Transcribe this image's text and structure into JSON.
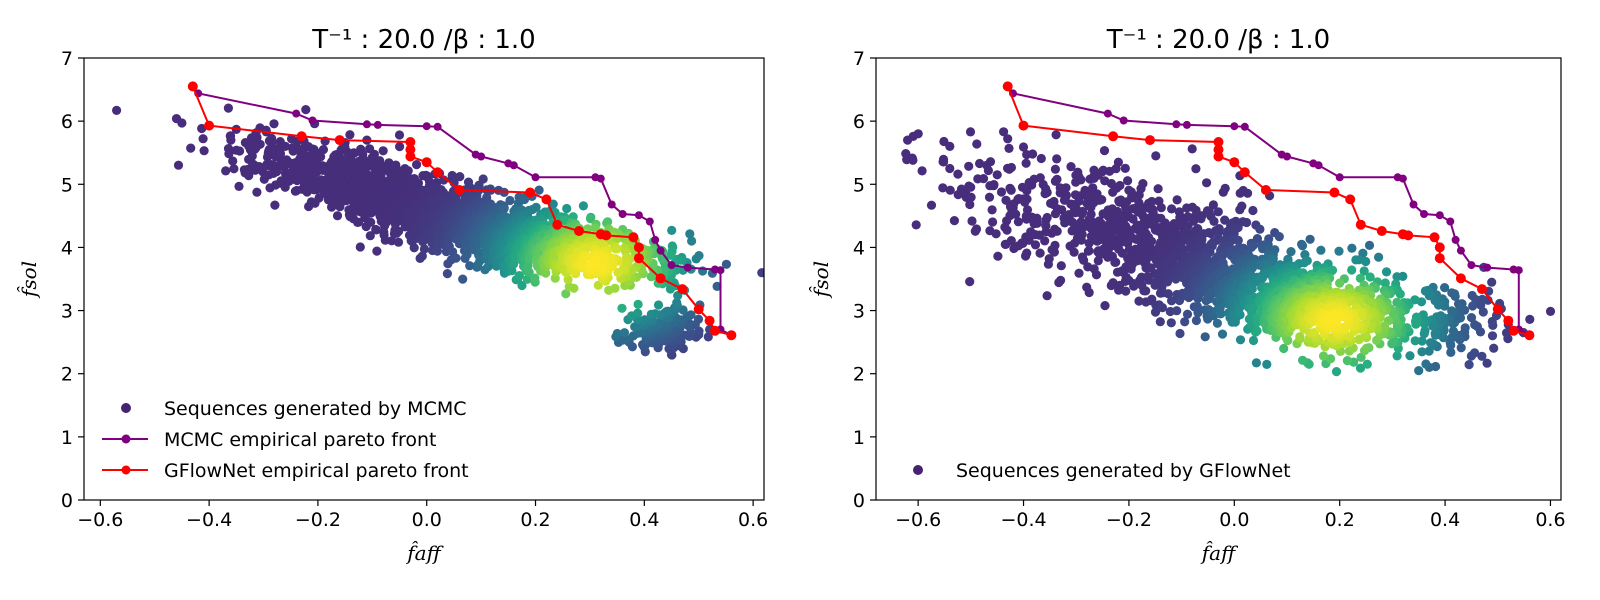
{
  "chart_data": [
    {
      "type": "scatter",
      "title": "T⁻¹ : 20.0 /β : 1.0",
      "xlabel": "f̂aff",
      "ylabel": "f̂sol",
      "xlim": [
        -0.63,
        0.62
      ],
      "ylim": [
        0,
        7
      ],
      "xticks": [
        -0.6,
        -0.4,
        -0.2,
        0.0,
        0.2,
        0.4,
        0.6
      ],
      "xtick_labels": [
        "−0.6",
        "−0.4",
        "−0.2",
        "0.0",
        "0.2",
        "0.4",
        "0.6"
      ],
      "yticks": [
        0,
        1,
        2,
        3,
        4,
        5,
        6,
        7
      ],
      "ytick_labels": [
        "0",
        "1",
        "2",
        "3",
        "4",
        "5",
        "6",
        "7"
      ],
      "grid": false,
      "legend_position": "lower-left",
      "series": [
        {
          "name": "Sequences generated by MCMC",
          "kind": "scatter-density",
          "colormap": "viridis",
          "density_peak": [
            0.31,
            3.75
          ],
          "outlier_points": [
            [
              -0.57,
              6.17
            ],
            [
              -0.46,
              6.04
            ],
            [
              -0.45,
              5.97
            ],
            [
              -0.36,
              5.7
            ],
            [
              -0.33,
              5.65
            ],
            [
              -0.35,
              5.87
            ],
            [
              -0.26,
              5.6
            ],
            [
              -0.19,
              5.55
            ],
            [
              -0.15,
              5.66
            ],
            [
              -0.08,
              5.53
            ],
            [
              -0.11,
              5.7
            ],
            [
              -0.05,
              5.78
            ],
            [
              0.42,
              2.7
            ],
            [
              0.4,
              2.42
            ],
            [
              0.45,
              2.3
            ],
            [
              0.47,
              2.82
            ],
            [
              0.42,
              2.95
            ],
            [
              0.5,
              2.62
            ],
            [
              0.46,
              2.55
            ],
            [
              0.38,
              2.6
            ],
            [
              0.52,
              2.7
            ]
          ],
          "color_low": "#46327e",
          "color_high": "#fde725"
        },
        {
          "name": "MCMC empirical pareto front",
          "kind": "line",
          "color": "#800080",
          "points": [
            [
              -0.43,
              6.55
            ],
            [
              -0.42,
              6.44
            ],
            [
              -0.24,
              6.12
            ],
            [
              -0.21,
              6.01
            ],
            [
              -0.11,
              5.95
            ],
            [
              -0.09,
              5.94
            ],
            [
              0.0,
              5.92
            ],
            [
              0.02,
              5.91
            ],
            [
              0.09,
              5.47
            ],
            [
              0.1,
              5.44
            ],
            [
              0.15,
              5.33
            ],
            [
              0.16,
              5.3
            ],
            [
              0.2,
              5.11
            ],
            [
              0.31,
              5.11
            ],
            [
              0.32,
              5.09
            ],
            [
              0.34,
              4.68
            ],
            [
              0.36,
              4.53
            ],
            [
              0.39,
              4.51
            ],
            [
              0.41,
              4.41
            ],
            [
              0.42,
              4.12
            ],
            [
              0.43,
              3.95
            ],
            [
              0.45,
              3.72
            ],
            [
              0.48,
              3.68
            ],
            [
              0.53,
              3.65
            ],
            [
              0.54,
              3.64
            ],
            [
              0.54,
              2.7
            ],
            [
              0.56,
              2.61
            ]
          ]
        },
        {
          "name": "GFlowNet empirical pareto front",
          "kind": "line",
          "color": "#ff0000",
          "points": [
            [
              -0.43,
              6.55
            ],
            [
              -0.4,
              5.93
            ],
            [
              -0.23,
              5.76
            ],
            [
              -0.16,
              5.7
            ],
            [
              -0.03,
              5.67
            ],
            [
              -0.03,
              5.55
            ],
            [
              -0.03,
              5.44
            ],
            [
              0.0,
              5.35
            ],
            [
              0.02,
              5.19
            ],
            [
              0.06,
              4.91
            ],
            [
              0.19,
              4.87
            ],
            [
              0.22,
              4.76
            ],
            [
              0.24,
              4.36
            ],
            [
              0.28,
              4.26
            ],
            [
              0.32,
              4.21
            ],
            [
              0.33,
              4.19
            ],
            [
              0.38,
              4.16
            ],
            [
              0.39,
              4.0
            ],
            [
              0.39,
              3.83
            ],
            [
              0.43,
              3.51
            ],
            [
              0.47,
              3.34
            ],
            [
              0.5,
              3.02
            ],
            [
              0.52,
              2.84
            ],
            [
              0.53,
              2.68
            ],
            [
              0.56,
              2.61
            ]
          ]
        }
      ]
    },
    {
      "type": "scatter",
      "title": "T⁻¹ : 20.0 /β : 1.0",
      "xlabel": "f̂aff",
      "ylabel": "f̂sol",
      "xlim": [
        -0.68,
        0.62
      ],
      "ylim": [
        0,
        7
      ],
      "xticks": [
        -0.6,
        -0.4,
        -0.2,
        0.0,
        0.2,
        0.4,
        0.6
      ],
      "xtick_labels": [
        "−0.6",
        "−0.4",
        "−0.2",
        "0.0",
        "0.2",
        "0.4",
        "0.6"
      ],
      "yticks": [
        0,
        1,
        2,
        3,
        4,
        5,
        6,
        7
      ],
      "ytick_labels": [
        "0",
        "1",
        "2",
        "3",
        "4",
        "5",
        "6",
        "7"
      ],
      "grid": false,
      "legend_position": "lower-left",
      "series": [
        {
          "name": "Sequences generated by GFlowNet",
          "kind": "scatter-density",
          "colormap": "viridis",
          "density_peak": [
            0.19,
            2.85
          ],
          "outlier_points": [
            [
              -0.62,
              5.7
            ],
            [
              -0.6,
              5.8
            ],
            [
              -0.61,
              5.38
            ],
            [
              -0.54,
              5.6
            ],
            [
              -0.54,
              5.25
            ],
            [
              -0.47,
              5.3
            ],
            [
              -0.45,
              5.15
            ],
            [
              -0.43,
              5.72
            ],
            [
              -0.4,
              5.59
            ],
            [
              -0.38,
              5.08
            ],
            [
              -0.31,
              5.28
            ],
            [
              -0.28,
              4.7
            ],
            [
              -0.22,
              5.35
            ],
            [
              -0.08,
              5.56
            ],
            [
              0.35,
              2.05
            ],
            [
              0.37,
              2.1
            ],
            [
              0.45,
              2.28
            ],
            [
              0.49,
              2.6
            ],
            [
              0.52,
              2.78
            ]
          ],
          "color_low": "#46327e",
          "color_high": "#fde725"
        },
        {
          "name": "",
          "kind": "line",
          "color": "#800080",
          "points": [
            [
              -0.43,
              6.55
            ],
            [
              -0.42,
              6.44
            ],
            [
              -0.24,
              6.12
            ],
            [
              -0.21,
              6.01
            ],
            [
              -0.11,
              5.95
            ],
            [
              -0.09,
              5.94
            ],
            [
              0.0,
              5.92
            ],
            [
              0.02,
              5.91
            ],
            [
              0.09,
              5.47
            ],
            [
              0.1,
              5.44
            ],
            [
              0.15,
              5.33
            ],
            [
              0.16,
              5.3
            ],
            [
              0.2,
              5.11
            ],
            [
              0.31,
              5.11
            ],
            [
              0.32,
              5.09
            ],
            [
              0.34,
              4.68
            ],
            [
              0.36,
              4.53
            ],
            [
              0.39,
              4.51
            ],
            [
              0.41,
              4.41
            ],
            [
              0.42,
              4.12
            ],
            [
              0.43,
              3.95
            ],
            [
              0.45,
              3.72
            ],
            [
              0.48,
              3.68
            ],
            [
              0.53,
              3.65
            ],
            [
              0.54,
              3.64
            ],
            [
              0.54,
              2.7
            ],
            [
              0.56,
              2.61
            ]
          ]
        },
        {
          "name": "",
          "kind": "line",
          "color": "#ff0000",
          "points": [
            [
              -0.43,
              6.55
            ],
            [
              -0.4,
              5.93
            ],
            [
              -0.23,
              5.76
            ],
            [
              -0.16,
              5.7
            ],
            [
              -0.03,
              5.67
            ],
            [
              -0.03,
              5.55
            ],
            [
              -0.03,
              5.44
            ],
            [
              0.0,
              5.35
            ],
            [
              0.02,
              5.19
            ],
            [
              0.06,
              4.91
            ],
            [
              0.19,
              4.87
            ],
            [
              0.22,
              4.76
            ],
            [
              0.24,
              4.36
            ],
            [
              0.28,
              4.26
            ],
            [
              0.32,
              4.21
            ],
            [
              0.33,
              4.19
            ],
            [
              0.38,
              4.16
            ],
            [
              0.39,
              4.0
            ],
            [
              0.39,
              3.83
            ],
            [
              0.43,
              3.51
            ],
            [
              0.47,
              3.34
            ],
            [
              0.5,
              3.02
            ],
            [
              0.52,
              2.84
            ],
            [
              0.53,
              2.68
            ],
            [
              0.56,
              2.61
            ]
          ]
        }
      ]
    }
  ]
}
